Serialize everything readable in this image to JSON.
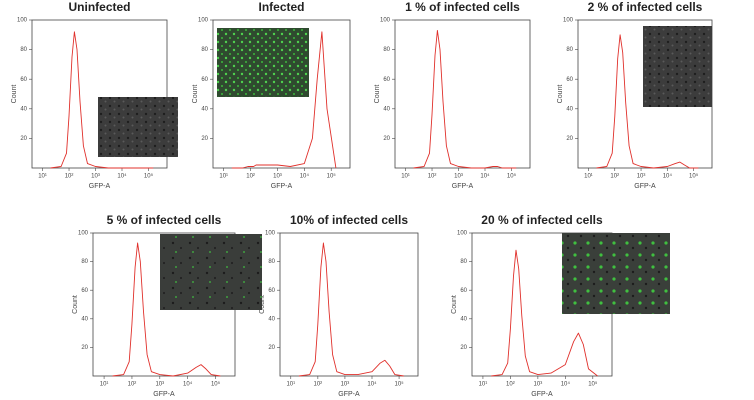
{
  "chart_data": [
    {
      "type": "line",
      "title": "Uninfected",
      "xlabel": "GFP-A",
      "ylabel": "Count",
      "xscale": "log",
      "color": "#e0302b",
      "xlim": [
        4,
        500000
      ],
      "ylim": [
        0,
        100
      ],
      "yticks": [
        20,
        40,
        60,
        80,
        100
      ],
      "xticks": [
        {
          "value": 10,
          "label": "10¹"
        },
        {
          "value": 100,
          "label": "10²"
        },
        {
          "value": 1000,
          "label": "10³"
        },
        {
          "value": 10000,
          "label": "10⁴"
        },
        {
          "value": 100000,
          "label": "10⁵"
        }
      ],
      "x": [
        20,
        50,
        80,
        100,
        130,
        160,
        200,
        260,
        350,
        500,
        1000,
        3000,
        10000,
        20000,
        30000,
        45000,
        70000,
        150000
      ],
      "values": [
        0,
        1,
        10,
        35,
        75,
        92,
        80,
        45,
        15,
        3,
        1,
        0,
        0,
        0,
        0,
        0,
        0,
        0
      ]
    },
    {
      "type": "line",
      "title": "Infected",
      "xlabel": "GFP-A",
      "ylabel": "Count",
      "xscale": "log",
      "color": "#e0302b",
      "xlim": [
        4,
        500000
      ],
      "ylim": [
        0,
        100
      ],
      "yticks": [
        20,
        40,
        60,
        80,
        100
      ],
      "xticks": [
        {
          "value": 10,
          "label": "10¹"
        },
        {
          "value": 100,
          "label": "10²"
        },
        {
          "value": 1000,
          "label": "10³"
        },
        {
          "value": 10000,
          "label": "10⁴"
        },
        {
          "value": 100000,
          "label": "10⁵"
        }
      ],
      "x": [
        20,
        50,
        80,
        100,
        130,
        160,
        200,
        260,
        350,
        500,
        1000,
        3000,
        10000,
        20000,
        30000,
        45000,
        70000,
        150000
      ],
      "values": [
        0,
        0,
        1,
        1,
        1,
        2,
        2,
        2,
        2,
        2,
        2,
        1,
        3,
        20,
        60,
        92,
        40,
        0
      ]
    },
    {
      "type": "line",
      "title": "1 % of infected cells",
      "xlabel": "GFP-A",
      "ylabel": "Count",
      "xscale": "log",
      "color": "#e0302b",
      "xlim": [
        4,
        500000
      ],
      "ylim": [
        0,
        100
      ],
      "yticks": [
        20,
        40,
        60,
        80,
        100
      ],
      "xticks": [
        {
          "value": 10,
          "label": "10¹"
        },
        {
          "value": 100,
          "label": "10²"
        },
        {
          "value": 1000,
          "label": "10³"
        },
        {
          "value": 10000,
          "label": "10⁴"
        },
        {
          "value": 100000,
          "label": "10⁵"
        }
      ],
      "x": [
        20,
        50,
        80,
        100,
        130,
        160,
        200,
        260,
        350,
        500,
        1000,
        3000,
        10000,
        20000,
        30000,
        45000,
        70000,
        150000
      ],
      "values": [
        0,
        1,
        10,
        36,
        76,
        93,
        80,
        45,
        15,
        3,
        1,
        0,
        0,
        1,
        1,
        0,
        0,
        0
      ]
    },
    {
      "type": "line",
      "title": "2 % of infected cells",
      "xlabel": "GFP-A",
      "ylabel": "Count",
      "xscale": "log",
      "color": "#e0302b",
      "xlim": [
        4,
        500000
      ],
      "ylim": [
        0,
        100
      ],
      "yticks": [
        20,
        40,
        60,
        80,
        100
      ],
      "xticks": [
        {
          "value": 10,
          "label": "10¹"
        },
        {
          "value": 100,
          "label": "10²"
        },
        {
          "value": 1000,
          "label": "10³"
        },
        {
          "value": 10000,
          "label": "10⁴"
        },
        {
          "value": 100000,
          "label": "10⁵"
        }
      ],
      "x": [
        20,
        50,
        80,
        100,
        130,
        160,
        200,
        260,
        350,
        500,
        1000,
        3000,
        10000,
        20000,
        30000,
        45000,
        70000,
        150000
      ],
      "values": [
        0,
        1,
        10,
        35,
        74,
        90,
        78,
        44,
        15,
        3,
        1,
        0,
        1,
        3,
        4,
        2,
        0,
        0
      ]
    },
    {
      "type": "line",
      "title": "5 % of infected cells",
      "xlabel": "GFP-A",
      "ylabel": "Count",
      "xscale": "log",
      "color": "#e0302b",
      "xlim": [
        4,
        500000
      ],
      "ylim": [
        0,
        100
      ],
      "yticks": [
        20,
        40,
        60,
        80,
        100
      ],
      "xticks": [
        {
          "value": 10,
          "label": "10¹"
        },
        {
          "value": 100,
          "label": "10²"
        },
        {
          "value": 1000,
          "label": "10³"
        },
        {
          "value": 10000,
          "label": "10⁴"
        },
        {
          "value": 100000,
          "label": "10⁵"
        }
      ],
      "x": [
        20,
        50,
        80,
        100,
        130,
        160,
        200,
        260,
        350,
        500,
        1000,
        3000,
        10000,
        20000,
        30000,
        45000,
        70000,
        150000
      ],
      "values": [
        0,
        1,
        10,
        36,
        76,
        93,
        80,
        45,
        15,
        3,
        1,
        0,
        2,
        6,
        8,
        5,
        1,
        0
      ]
    },
    {
      "type": "line",
      "title": "10% of infected cells",
      "xlabel": "GFP-A",
      "ylabel": "Count",
      "xscale": "log",
      "color": "#e0302b",
      "xlim": [
        4,
        500000
      ],
      "ylim": [
        0,
        100
      ],
      "yticks": [
        20,
        40,
        60,
        80,
        100
      ],
      "xticks": [
        {
          "value": 10,
          "label": "10¹"
        },
        {
          "value": 100,
          "label": "10²"
        },
        {
          "value": 1000,
          "label": "10³"
        },
        {
          "value": 10000,
          "label": "10⁴"
        },
        {
          "value": 100000,
          "label": "10⁵"
        }
      ],
      "x": [
        20,
        50,
        80,
        100,
        130,
        160,
        200,
        260,
        350,
        500,
        1000,
        3000,
        10000,
        20000,
        30000,
        45000,
        70000,
        150000
      ],
      "values": [
        0,
        1,
        10,
        36,
        76,
        93,
        80,
        45,
        15,
        3,
        1,
        1,
        3,
        9,
        11,
        7,
        1,
        0
      ]
    },
    {
      "type": "line",
      "title": "20 % of infected cells",
      "xlabel": "GFP-A",
      "ylabel": "Count",
      "xscale": "log",
      "color": "#e0302b",
      "xlim": [
        4,
        500000
      ],
      "ylim": [
        0,
        100
      ],
      "yticks": [
        20,
        40,
        60,
        80,
        100
      ],
      "xticks": [
        {
          "value": 10,
          "label": "10¹"
        },
        {
          "value": 100,
          "label": "10²"
        },
        {
          "value": 1000,
          "label": "10³"
        },
        {
          "value": 10000,
          "label": "10⁴"
        },
        {
          "value": 100000,
          "label": "10⁵"
        }
      ],
      "x": [
        20,
        50,
        80,
        100,
        130,
        160,
        200,
        260,
        350,
        500,
        1000,
        3000,
        10000,
        20000,
        30000,
        45000,
        70000,
        150000
      ],
      "values": [
        0,
        1,
        9,
        33,
        70,
        88,
        75,
        42,
        14,
        3,
        1,
        2,
        8,
        24,
        30,
        22,
        5,
        0
      ]
    }
  ]
}
